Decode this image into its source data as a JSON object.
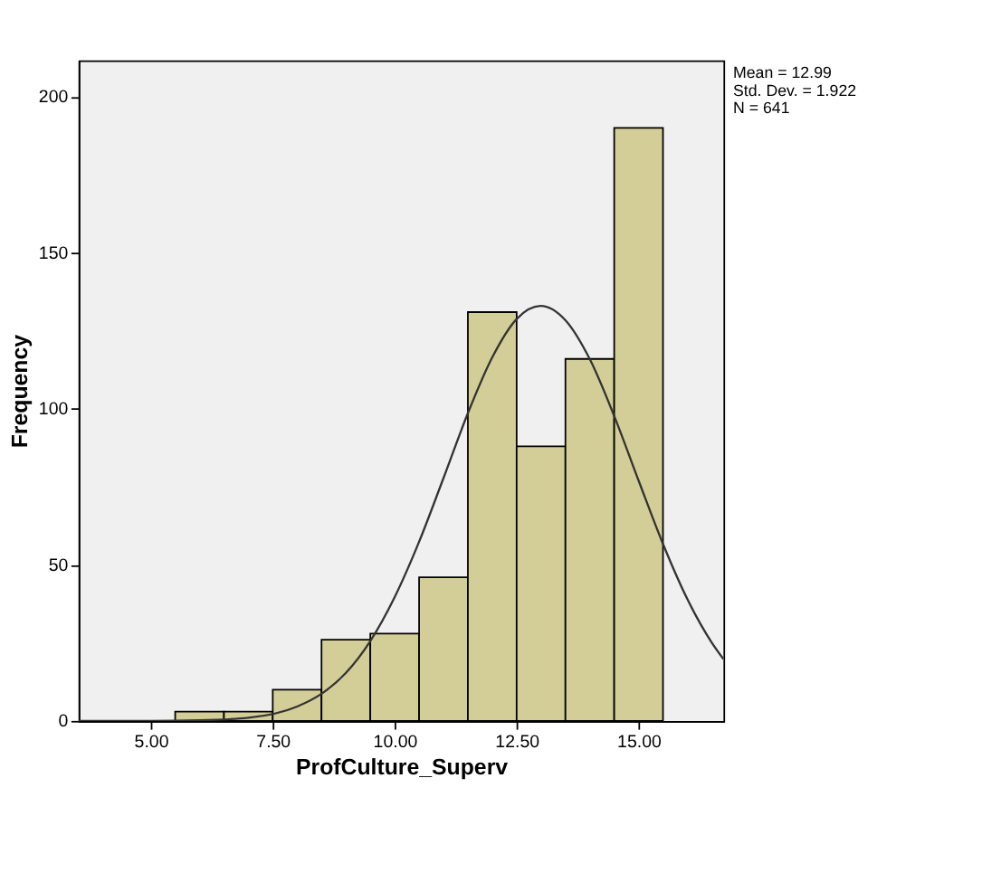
{
  "chart_data": {
    "type": "histogram",
    "xlabel": "ProfCulture_Superv",
    "ylabel": "Frequency",
    "bins": [
      5.5,
      6.5,
      7.5,
      8.5,
      9.5,
      10.5,
      11.5,
      12.5,
      13.5,
      14.5,
      15.5
    ],
    "values": [
      3,
      3,
      10,
      26,
      28,
      46,
      131,
      88,
      116,
      190
    ],
    "color": "#d3ce97",
    "series": [
      {
        "type": "line",
        "color": "#333333",
        "x": [
          3.52,
          5,
          6,
          7,
          8,
          8.5,
          9,
          9.5,
          10,
          10.5,
          11,
          11.5,
          12,
          12.5,
          12.99,
          13.5,
          14,
          14.5,
          15,
          15.5,
          16,
          16.5,
          16.74
        ],
        "values": [
          0,
          0,
          0.2,
          1,
          4.6,
          8.7,
          15.4,
          25.6,
          39.7,
          57.4,
          77.8,
          98.6,
          116.5,
          128.8,
          133,
          128.4,
          115.9,
          97.7,
          77,
          56.7,
          39,
          25.1,
          19.8
        ]
      }
    ],
    "xlim": [
      3.52,
      16.74
    ],
    "ylim": [
      0,
      211.7
    ],
    "xticks": [
      {
        "value": 5,
        "label": "5.00"
      },
      {
        "value": 7.5,
        "label": "7.50"
      },
      {
        "value": 10,
        "label": "10.00"
      },
      {
        "value": 12.5,
        "label": "12.50"
      },
      {
        "value": 15,
        "label": "15.00"
      }
    ],
    "yticks": [
      0,
      50,
      100,
      150,
      200
    ],
    "grid": false,
    "annotations": [
      "Mean = 12.99",
      "Std. Dev. = 1.922",
      "N = 641"
    ]
  }
}
